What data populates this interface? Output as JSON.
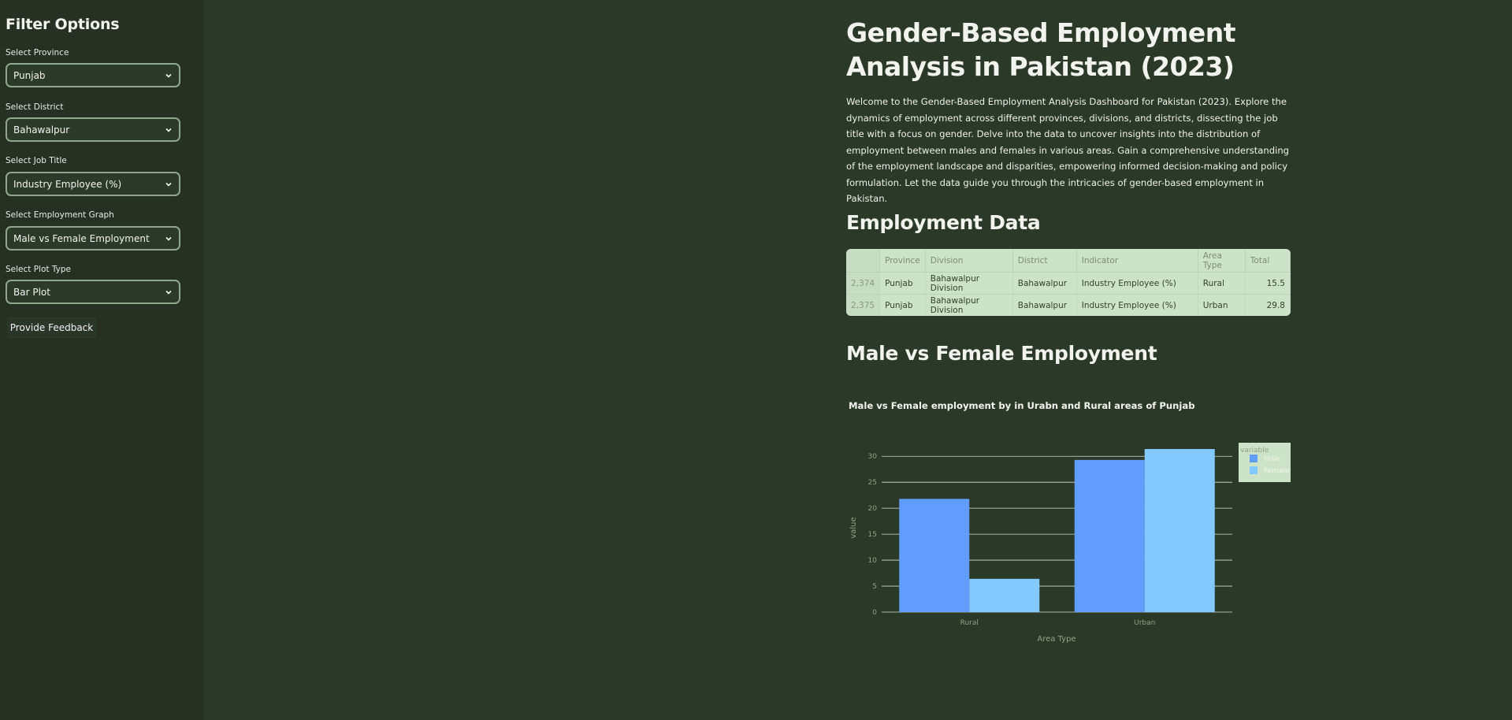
{
  "sidebar": {
    "title": "Filter Options",
    "filters": [
      {
        "label": "Select Province",
        "value": "Punjab"
      },
      {
        "label": "Select District",
        "value": "Bahawalpur"
      },
      {
        "label": "Select Job Title",
        "value": "Industry Employee (%)"
      },
      {
        "label": "Select Employment Graph",
        "value": "Male vs Female Employment"
      },
      {
        "label": "Select Plot Type",
        "value": "Bar Plot"
      }
    ],
    "feedback_label": "Provide Feedback"
  },
  "main": {
    "title": "Gender-Based Employment Analysis in Pakistan (2023)",
    "intro": "Welcome to the Gender-Based Employment Analysis Dashboard for Pakistan (2023). Explore the dynamics of employment across different provinces, divisions, and districts, dissecting the job title with a focus on gender. Delve into the data to uncover insights into the distribution of employment between males and females in various areas. Gain a comprehensive understanding of the employment landscape and disparities, empowering informed decision-making and policy formulation. Let the data guide you through the intricacies of gender-based employment in Pakistan.",
    "data_heading": "Employment Data",
    "graph_heading": "Male vs Female Employment"
  },
  "table": {
    "columns": [
      "",
      "Province",
      "Division",
      "District",
      "Indicator",
      "Area Type",
      "Total"
    ],
    "rows": [
      [
        "2,374",
        "Punjab",
        "Bahawalpur Division",
        "Bahawalpur",
        "Industry Employee (%)",
        "Rural",
        "15.5"
      ],
      [
        "2,375",
        "Punjab",
        "Bahawalpur Division",
        "Bahawalpur",
        "Industry Employee (%)",
        "Urban",
        "29.8"
      ]
    ]
  },
  "chart_data": {
    "type": "bar",
    "title": "Male vs Female employment by in Urabn and Rural areas of Punjab",
    "xlabel": "Area Type",
    "ylabel": "value",
    "categories": [
      "Rural",
      "Urban"
    ],
    "series": [
      {
        "name": "Male",
        "values": [
          21.8,
          29.3
        ],
        "color": "#619cff"
      },
      {
        "name": "Female",
        "values": [
          6.4,
          31.4
        ],
        "color": "#83c9ff"
      }
    ],
    "ylim": [
      0,
      31.4
    ],
    "yticks": [
      0,
      5,
      10,
      15,
      20,
      25,
      30
    ],
    "legend_title": "variable",
    "legend_position": "top-right",
    "grid": true
  }
}
